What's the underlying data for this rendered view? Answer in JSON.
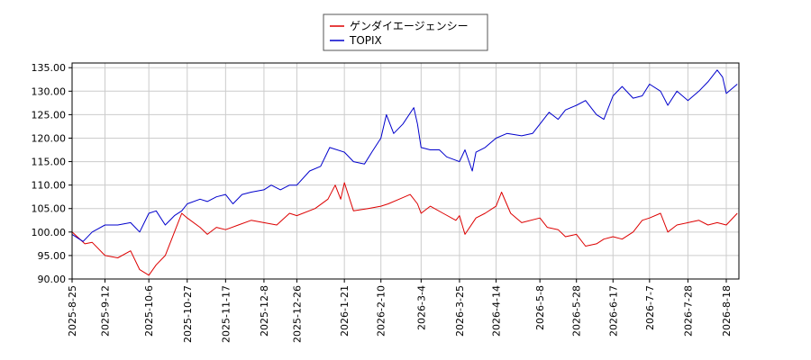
{
  "chart_data": {
    "type": "line",
    "title": "",
    "xlabel": "",
    "ylabel": "",
    "ylim": [
      90,
      136
    ],
    "grid": true,
    "legend_position": "top-center",
    "x_tick_labels": [
      "2025-8-25",
      "2025-9-12",
      "2025-10-6",
      "2025-10-27",
      "2025-11-17",
      "2025-12-8",
      "2025-12-26",
      "2026-1-21",
      "2026-2-10",
      "2026-3-4",
      "2026-3-25",
      "2026-4-14",
      "2026-5-8",
      "2026-5-28",
      "2026-6-17",
      "2026-7-7",
      "2026-7-28",
      "2026-8-18"
    ],
    "y_tick_labels": [
      "90.00",
      "95.00",
      "100.00",
      "105.00",
      "110.00",
      "115.00",
      "120.00",
      "125.00",
      "130.00",
      "135.00"
    ],
    "y_ticks": [
      90,
      95,
      100,
      105,
      110,
      115,
      120,
      125,
      130,
      135
    ],
    "series": [
      {
        "name": "ゲンダイエージェンシー",
        "color": "#dd0000",
        "points": [
          [
            "2025-8-25",
            100.0
          ],
          [
            "2025-9-1",
            97.5
          ],
          [
            "2025-9-5",
            97.8
          ],
          [
            "2025-9-12",
            95.0
          ],
          [
            "2025-9-19",
            94.5
          ],
          [
            "2025-9-26",
            96.0
          ],
          [
            "2025-10-1",
            92.0
          ],
          [
            "2025-10-6",
            90.8
          ],
          [
            "2025-10-10",
            93.0
          ],
          [
            "2025-10-15",
            95.0
          ],
          [
            "2025-10-20",
            100.0
          ],
          [
            "2025-10-24",
            104.0
          ],
          [
            "2025-10-27",
            103.0
          ],
          [
            "2025-11-3",
            101.0
          ],
          [
            "2025-11-7",
            99.5
          ],
          [
            "2025-11-12",
            101.0
          ],
          [
            "2025-11-17",
            100.5
          ],
          [
            "2025-11-24",
            101.5
          ],
          [
            "2025-12-1",
            102.5
          ],
          [
            "2025-12-8",
            102.0
          ],
          [
            "2025-12-15",
            101.5
          ],
          [
            "2025-12-22",
            104.0
          ],
          [
            "2025-12-26",
            103.5
          ],
          [
            "2026-1-5",
            105.0
          ],
          [
            "2026-1-12",
            107.0
          ],
          [
            "2026-1-16",
            110.0
          ],
          [
            "2026-1-19",
            107.0
          ],
          [
            "2026-1-21",
            110.5
          ],
          [
            "2026-1-26",
            104.5
          ],
          [
            "2026-2-3",
            105.0
          ],
          [
            "2026-2-10",
            105.5
          ],
          [
            "2026-2-14",
            106.0
          ],
          [
            "2026-2-20",
            107.0
          ],
          [
            "2026-2-26",
            108.0
          ],
          [
            "2026-3-2",
            106.0
          ],
          [
            "2026-3-4",
            104.0
          ],
          [
            "2026-3-9",
            105.5
          ],
          [
            "2026-3-16",
            104.0
          ],
          [
            "2026-3-23",
            102.5
          ],
          [
            "2026-3-25",
            103.5
          ],
          [
            "2026-3-28",
            99.5
          ],
          [
            "2026-4-3",
            103.0
          ],
          [
            "2026-4-8",
            104.0
          ],
          [
            "2026-4-14",
            105.5
          ],
          [
            "2026-4-17",
            108.5
          ],
          [
            "2026-4-22",
            104.0
          ],
          [
            "2026-4-28",
            102.0
          ],
          [
            "2026-5-8",
            103.0
          ],
          [
            "2026-5-12",
            101.0
          ],
          [
            "2026-5-18",
            100.5
          ],
          [
            "2026-5-22",
            99.0
          ],
          [
            "2026-5-28",
            99.5
          ],
          [
            "2026-6-2",
            97.0
          ],
          [
            "2026-6-8",
            97.5
          ],
          [
            "2026-6-12",
            98.5
          ],
          [
            "2026-6-17",
            99.0
          ],
          [
            "2026-6-22",
            98.5
          ],
          [
            "2026-6-28",
            100.0
          ],
          [
            "2026-7-3",
            102.5
          ],
          [
            "2026-7-7",
            103.0
          ],
          [
            "2026-7-13",
            104.0
          ],
          [
            "2026-7-17",
            100.0
          ],
          [
            "2026-7-22",
            101.5
          ],
          [
            "2026-7-28",
            102.0
          ],
          [
            "2026-8-3",
            102.5
          ],
          [
            "2026-8-8",
            101.5
          ],
          [
            "2026-8-13",
            102.0
          ],
          [
            "2026-8-18",
            101.5
          ],
          [
            "2026-8-24",
            104.0
          ]
        ]
      },
      {
        "name": "TOPIX",
        "color": "#0000cc",
        "points": [
          [
            "2025-8-25",
            99.5
          ],
          [
            "2025-8-31",
            98.0
          ],
          [
            "2025-9-5",
            100.0
          ],
          [
            "2025-9-12",
            101.5
          ],
          [
            "2025-9-19",
            101.5
          ],
          [
            "2025-9-26",
            102.0
          ],
          [
            "2025-10-1",
            100.0
          ],
          [
            "2025-10-6",
            104.0
          ],
          [
            "2025-10-10",
            104.5
          ],
          [
            "2025-10-15",
            101.5
          ],
          [
            "2025-10-20",
            103.5
          ],
          [
            "2025-10-24",
            104.5
          ],
          [
            "2025-10-27",
            106.0
          ],
          [
            "2025-11-3",
            107.0
          ],
          [
            "2025-11-7",
            106.5
          ],
          [
            "2025-11-12",
            107.5
          ],
          [
            "2025-11-17",
            108.0
          ],
          [
            "2025-11-21",
            106.0
          ],
          [
            "2025-11-26",
            108.0
          ],
          [
            "2025-12-1",
            108.5
          ],
          [
            "2025-12-8",
            109.0
          ],
          [
            "2025-12-12",
            110.0
          ],
          [
            "2025-12-17",
            109.0
          ],
          [
            "2025-12-22",
            110.0
          ],
          [
            "2025-12-26",
            110.0
          ],
          [
            "2026-1-2",
            113.0
          ],
          [
            "2026-1-8",
            114.0
          ],
          [
            "2026-1-13",
            118.0
          ],
          [
            "2026-1-21",
            117.0
          ],
          [
            "2026-1-26",
            115.0
          ],
          [
            "2026-2-1",
            114.5
          ],
          [
            "2026-2-5",
            117.0
          ],
          [
            "2026-2-10",
            120.0
          ],
          [
            "2026-2-13",
            125.0
          ],
          [
            "2026-2-17",
            121.0
          ],
          [
            "2026-2-22",
            123.0
          ],
          [
            "2026-2-28",
            126.5
          ],
          [
            "2026-3-2",
            123.0
          ],
          [
            "2026-3-4",
            118.0
          ],
          [
            "2026-3-9",
            117.5
          ],
          [
            "2026-3-14",
            117.5
          ],
          [
            "2026-3-18",
            116.0
          ],
          [
            "2026-3-25",
            115.0
          ],
          [
            "2026-3-28",
            117.5
          ],
          [
            "2026-4-1",
            113.0
          ],
          [
            "2026-4-3",
            117.0
          ],
          [
            "2026-4-8",
            118.0
          ],
          [
            "2026-4-14",
            120.0
          ],
          [
            "2026-4-20",
            121.0
          ],
          [
            "2026-4-28",
            120.5
          ],
          [
            "2026-5-4",
            121.0
          ],
          [
            "2026-5-8",
            123.0
          ],
          [
            "2026-5-13",
            125.5
          ],
          [
            "2026-5-18",
            124.0
          ],
          [
            "2026-5-22",
            126.0
          ],
          [
            "2026-5-28",
            127.0
          ],
          [
            "2026-6-2",
            128.0
          ],
          [
            "2026-6-8",
            125.0
          ],
          [
            "2026-6-12",
            124.0
          ],
          [
            "2026-6-17",
            129.0
          ],
          [
            "2026-6-22",
            131.0
          ],
          [
            "2026-6-28",
            128.5
          ],
          [
            "2026-7-3",
            129.0
          ],
          [
            "2026-7-7",
            131.5
          ],
          [
            "2026-7-13",
            130.0
          ],
          [
            "2026-7-17",
            127.0
          ],
          [
            "2026-7-22",
            130.0
          ],
          [
            "2026-7-28",
            128.0
          ],
          [
            "2026-8-3",
            130.0
          ],
          [
            "2026-8-8",
            132.0
          ],
          [
            "2026-8-13",
            134.5
          ],
          [
            "2026-8-16",
            133.0
          ],
          [
            "2026-8-18",
            129.5
          ],
          [
            "2026-8-24",
            131.5
          ]
        ]
      }
    ]
  }
}
